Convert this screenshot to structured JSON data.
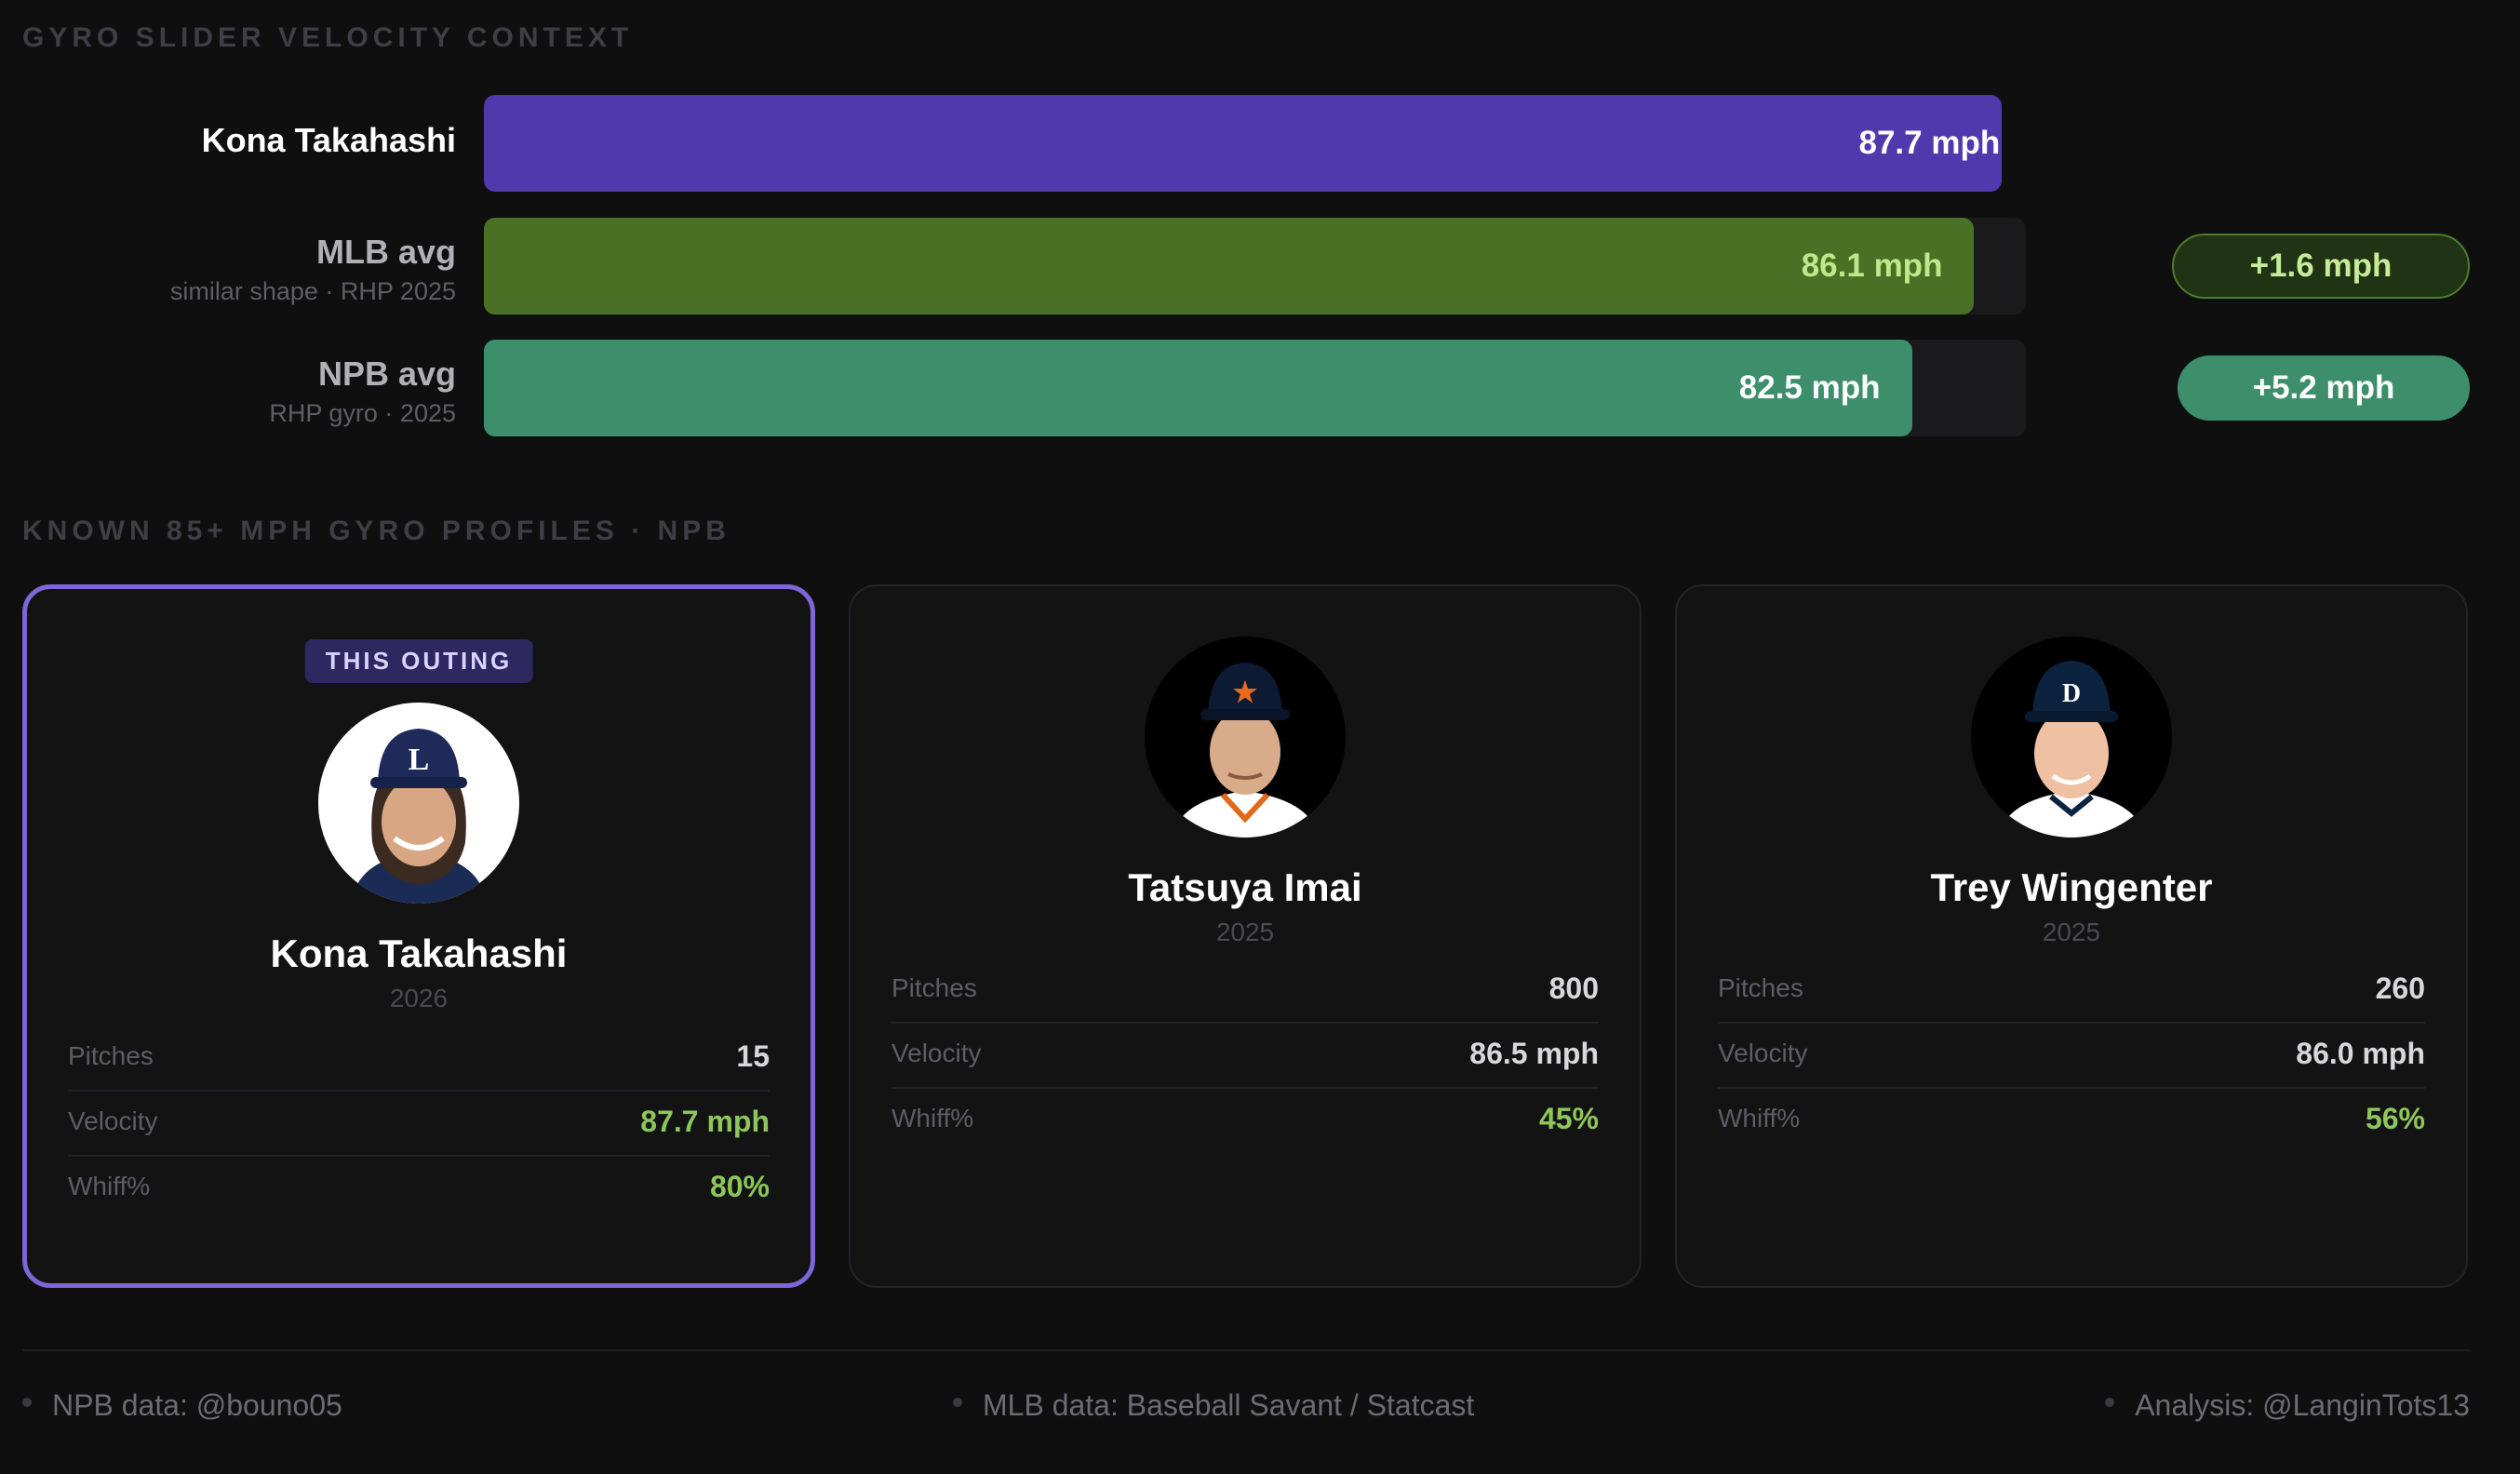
{
  "header": {
    "title": "GYRO SLIDER VELOCITY CONTEXT"
  },
  "chart_data": {
    "type": "bar",
    "orientation": "horizontal",
    "title": "GYRO SLIDER VELOCITY CONTEXT",
    "unit": "mph",
    "categories": [
      "Kona Takahashi",
      "MLB avg",
      "NPB avg"
    ],
    "subtitles": [
      "",
      "similar shape · RHP 2025",
      "RHP gyro · 2025"
    ],
    "values": [
      87.7,
      86.1,
      82.5
    ],
    "value_labels": [
      "87.7 mph",
      "86.1 mph",
      "82.5 mph"
    ],
    "deltas": [
      "",
      "+1.6 mph",
      "+5.2 mph"
    ],
    "colors": [
      "#4e3aac",
      "#4a7026",
      "#3d8f6b"
    ],
    "label_colors": [
      "#ffffff",
      "#bde98a",
      "#ffffff"
    ],
    "delta_styles": [
      null,
      {
        "bg": "#203314",
        "border": "#4c7f2a",
        "text": "#c6ec98"
      },
      {
        "bg": "#3d8f6b",
        "border": "#3d8f6b",
        "text": "#ffffff"
      }
    ],
    "xlim": [
      0,
      100
    ],
    "track_max": 89.1
  },
  "profiles": {
    "title": "KNOWN 85+ MPH GYRO PROFILES · NPB",
    "tag": "THIS OUTING",
    "stat_labels": {
      "pitches": "Pitches",
      "velocity": "Velocity",
      "whiff": "Whiff%"
    },
    "cards": [
      {
        "name": "Kona Takahashi",
        "year": "2026",
        "pitches": "15",
        "velocity": "87.7 mph",
        "whiff": "80%",
        "cap_logo": "L",
        "active": true
      },
      {
        "name": "Tatsuya Imai",
        "year": "2025",
        "pitches": "800",
        "velocity": "86.5 mph",
        "whiff": "45%",
        "cap_logo": "★",
        "active": false
      },
      {
        "name": "Trey Wingenter",
        "year": "2025",
        "pitches": "260",
        "velocity": "86.0 mph",
        "whiff": "56%",
        "cap_logo": "D",
        "active": false
      }
    ]
  },
  "footer": {
    "npb": "NPB data:  @bouno05",
    "mlb": "MLB data: Baseball Savant / Statcast",
    "analysis": "Analysis: @LanginTots13"
  },
  "colors": {
    "accent": "#7d67d8",
    "positive": "#8dc65a",
    "background": "#0f0f10"
  }
}
